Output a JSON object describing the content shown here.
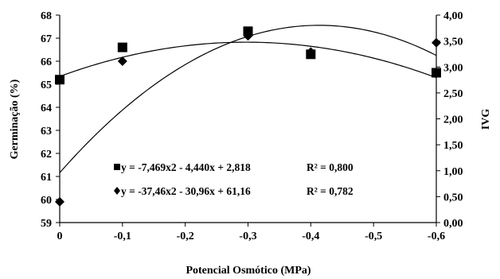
{
  "chart_data": {
    "type": "scatter",
    "xlabel": "Potencial Osmótico (MPa)",
    "ylabel_left": "Germinação (%)",
    "ylabel_right": "IVG",
    "x_ticks": [
      "0",
      "-0,1",
      "-0,2",
      "-0,3",
      "-0,4",
      "-0,5",
      "-0,6"
    ],
    "y_left_ticks": [
      "59",
      "60",
      "61",
      "62",
      "63",
      "64",
      "65",
      "66",
      "67",
      "68"
    ],
    "y_right_ticks": [
      "0,00",
      "0,50",
      "1,00",
      "1,50",
      "2,00",
      "2,50",
      "3,00",
      "3,50",
      "4,00"
    ],
    "xlim": [
      0,
      -0.6
    ],
    "ylim_left": [
      59,
      68
    ],
    "ylim_right": [
      0,
      4
    ],
    "series": [
      {
        "marker": "square",
        "axis": "left",
        "x": [
          0,
          -0.1,
          -0.3,
          -0.4,
          -0.6
        ],
        "y": [
          65.2,
          66.6,
          67.3,
          66.3,
          65.5
        ],
        "fit": {
          "a": -7.469,
          "b": -4.44,
          "c": 2.818,
          "axis": "right"
        },
        "equation": "y = -7,469x2 - 4,440x + 2,818",
        "r2": "R² = 0,800"
      },
      {
        "marker": "diamond",
        "axis": "left",
        "x": [
          0,
          -0.1,
          -0.3,
          -0.4,
          -0.6
        ],
        "y": [
          59.9,
          66.0,
          67.1,
          66.4,
          66.8
        ],
        "fit": {
          "a": -37.46,
          "b": -30.96,
          "c": 61.16,
          "axis": "left"
        },
        "equation": "y = -37,46x2 - 30,96x + 61,16",
        "r2": "R² = 0,782"
      }
    ],
    "grid": false,
    "legend": "inside-bottom-left"
  }
}
